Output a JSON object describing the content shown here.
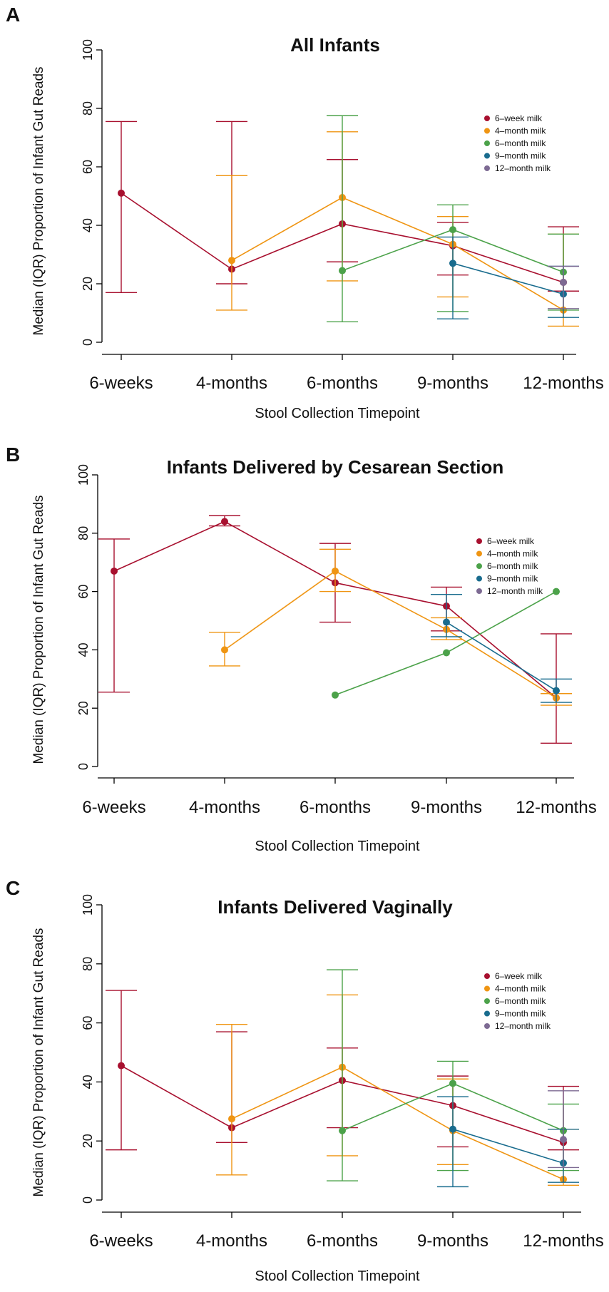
{
  "colors": {
    "6-week milk": "#a8102f",
    "4-month milk": "#ef9513",
    "6-month milk": "#4ca24a",
    "9-month milk": "#196c8e",
    "12-month milk": "#7d6a93",
    "axis": "#000000"
  },
  "chart_data": [
    {
      "panel": "A",
      "type": "line",
      "title": "All Infants",
      "xlabel": "Stool Collection Timepoint",
      "ylabel": "Median (IQR) Proportion of Infant Gut Reads",
      "categories": [
        "6-weeks",
        "4-months",
        "6-months",
        "9-months",
        "12-months"
      ],
      "ylim": [
        0,
        100
      ],
      "yticks": [
        "0",
        "20",
        "40",
        "60",
        "80",
        "100"
      ],
      "legend_position": "right",
      "series": [
        {
          "name": "6–week milk",
          "key": "6-week milk",
          "median": [
            51,
            25,
            40.5,
            33,
            20.5
          ],
          "q1": [
            17,
            20,
            27.5,
            23,
            17.5
          ],
          "q3": [
            75.5,
            75.5,
            62.5,
            41,
            39.5
          ]
        },
        {
          "name": "4–month milk",
          "key": "4-month milk",
          "median": [
            null,
            28,
            49.5,
            33.5,
            11
          ],
          "q1": [
            null,
            11,
            21,
            15.5,
            5.5
          ],
          "q3": [
            null,
            57,
            72,
            43,
            37
          ]
        },
        {
          "name": "6–month milk",
          "key": "6-month milk",
          "median": [
            null,
            null,
            24.5,
            38.5,
            24
          ],
          "q1": [
            null,
            null,
            7,
            10.5,
            11
          ],
          "q3": [
            null,
            null,
            77.5,
            47,
            37
          ]
        },
        {
          "name": "9–month milk",
          "key": "9-month milk",
          "median": [
            null,
            null,
            null,
            27,
            16.5
          ],
          "q1": [
            null,
            null,
            null,
            8,
            8.5
          ],
          "q3": [
            null,
            null,
            null,
            36,
            26
          ]
        },
        {
          "name": "12–month milk",
          "key": "12-month milk",
          "median": [
            null,
            null,
            null,
            null,
            20.5
          ],
          "q1": [
            null,
            null,
            null,
            null,
            11.5
          ],
          "q3": [
            null,
            null,
            null,
            null,
            26
          ]
        }
      ]
    },
    {
      "panel": "B",
      "type": "line",
      "title": "Infants Delivered by Cesarean Section",
      "xlabel": "Stool Collection Timepoint",
      "ylabel": "Median (IQR) Proportion of Infant Gut Reads",
      "categories": [
        "6-weeks",
        "4-months",
        "6-months",
        "9-months",
        "12-months"
      ],
      "ylim": [
        0,
        100
      ],
      "yticks": [
        "0",
        "20",
        "40",
        "60",
        "80",
        "100"
      ],
      "legend_position": "right",
      "series": [
        {
          "name": "6–week milk",
          "key": "6-week milk",
          "median": [
            67,
            84,
            63,
            55,
            23.5
          ],
          "q1": [
            25.5,
            82.5,
            49.5,
            46.5,
            8
          ],
          "q3": [
            78,
            86,
            76.5,
            61.5,
            45.5
          ]
        },
        {
          "name": "4–month milk",
          "key": "4-month milk",
          "median": [
            null,
            40,
            67,
            47,
            23.5
          ],
          "q1": [
            null,
            34.5,
            60,
            43.5,
            21
          ],
          "q3": [
            null,
            46,
            74.5,
            51,
            25
          ]
        },
        {
          "name": "6–month milk",
          "key": "6-month milk",
          "median": [
            null,
            null,
            24.5,
            39,
            60
          ],
          "q1": [
            null,
            null,
            null,
            null,
            null
          ],
          "q3": [
            null,
            null,
            null,
            null,
            null
          ]
        },
        {
          "name": "9–month milk",
          "key": "9-month milk",
          "median": [
            null,
            null,
            null,
            49.5,
            26
          ],
          "q1": [
            null,
            null,
            null,
            44.5,
            22
          ],
          "q3": [
            null,
            null,
            null,
            59,
            30
          ]
        },
        {
          "name": "12–month milk",
          "key": "12-month milk",
          "median": [
            null,
            null,
            null,
            null,
            null
          ],
          "q1": [
            null,
            null,
            null,
            null,
            null
          ],
          "q3": [
            null,
            null,
            null,
            null,
            null
          ]
        }
      ]
    },
    {
      "panel": "C",
      "type": "line",
      "title": "Infants Delivered Vaginally",
      "xlabel": "Stool Collection Timepoint",
      "ylabel": "Median (IQR) Proportion of Infant Gut Reads",
      "categories": [
        "6-weeks",
        "4-months",
        "6-months",
        "9-months",
        "12-months"
      ],
      "ylim": [
        0,
        100
      ],
      "yticks": [
        "0",
        "20",
        "40",
        "60",
        "80",
        "100"
      ],
      "legend_position": "right",
      "series": [
        {
          "name": "6–week milk",
          "key": "6-week milk",
          "median": [
            45.5,
            24.5,
            40.5,
            32,
            19.5
          ],
          "q1": [
            17,
            19.5,
            24.5,
            18,
            17
          ],
          "q3": [
            71,
            57,
            51.5,
            42,
            38.5
          ]
        },
        {
          "name": "4–month milk",
          "key": "4-month milk",
          "median": [
            null,
            27.5,
            45,
            23.5,
            7
          ],
          "q1": [
            null,
            8.5,
            15,
            12,
            5
          ],
          "q3": [
            null,
            59.5,
            69.5,
            41,
            24
          ]
        },
        {
          "name": "6–month milk",
          "key": "6-month milk",
          "median": [
            null,
            null,
            23.5,
            39.5,
            23.5
          ],
          "q1": [
            null,
            null,
            6.5,
            10,
            10
          ],
          "q3": [
            null,
            null,
            78,
            47,
            32.5
          ]
        },
        {
          "name": "9–month milk",
          "key": "9-month milk",
          "median": [
            null,
            null,
            null,
            24,
            12.5
          ],
          "q1": [
            null,
            null,
            null,
            4.5,
            6
          ],
          "q3": [
            null,
            null,
            null,
            35,
            24
          ]
        },
        {
          "name": "12–month milk",
          "key": "12-month milk",
          "median": [
            null,
            null,
            null,
            null,
            20.5
          ],
          "q1": [
            null,
            null,
            null,
            null,
            11
          ],
          "q3": [
            null,
            null,
            null,
            null,
            37
          ]
        }
      ]
    }
  ]
}
